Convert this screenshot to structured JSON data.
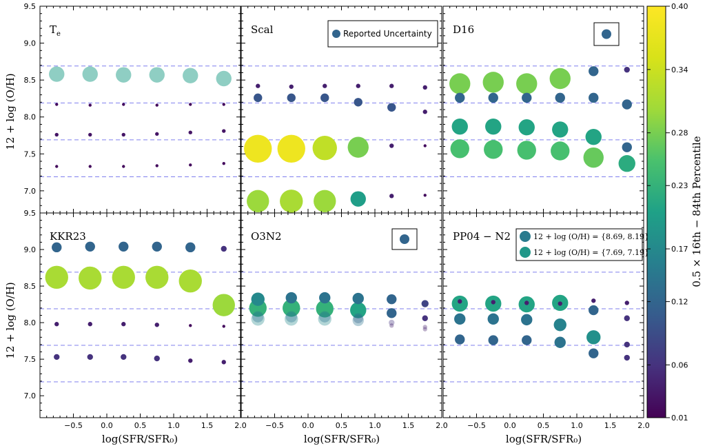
{
  "figure": {
    "ylabel": "12 + log (O/H)",
    "xlabel": "log(SFR/SFR₀)",
    "colorbar": {
      "label": "0.5 × 16th − 84th Percentile",
      "ticks": [
        "0.01",
        "0.06",
        "0.12",
        "0.17",
        "0.23",
        "0.28",
        "0.34",
        "0.40"
      ],
      "min": 0.01,
      "max": 0.4,
      "colormap": "viridis"
    },
    "x_ticks": [
      "−0.5",
      "0.0",
      "0.5",
      "1.0",
      "1.5",
      "2.0"
    ],
    "y_ticks": [
      "7.0",
      "7.5",
      "8.0",
      "8.5",
      "9.0",
      "9.5"
    ],
    "legend_reported": "Reported Uncertainty",
    "legend_bins_high": "12 + log (O/H) = {8.69, 8.19}",
    "legend_bins_low": "12 + log (O/H) = {7.69, 7.19}"
  },
  "chart_data": {
    "type": "scatter",
    "layout": "2x3 grid",
    "xlabel": "log(SFR/SFR₀)",
    "ylabel": "12 + log (O/H)",
    "xlim": [
      -1.0,
      2.0
    ],
    "ylim": [
      6.7,
      9.5
    ],
    "reference_lines": [
      8.69,
      8.19,
      7.69,
      7.19
    ],
    "x": [
      -0.75,
      -0.25,
      0.25,
      0.75,
      1.25,
      1.75
    ],
    "colorbar": {
      "label": "0.5 × 16th − 84th Percentile",
      "min": 0.01,
      "max": 0.4
    },
    "panels": [
      {
        "title": "T_e",
        "series": [
          {
            "y": [
              8.58,
              8.58,
              8.57,
              8.57,
              8.56,
              8.52
            ],
            "sigma": [
              0.2,
              0.2,
              0.2,
              0.2,
              0.2,
              0.2
            ],
            "alpha": 0.5
          },
          {
            "y": [
              8.17,
              8.16,
              8.17,
              8.16,
              8.17,
              8.17
            ],
            "sigma": [
              0.02,
              0.02,
              0.02,
              0.02,
              0.02,
              0.02
            ]
          },
          {
            "y": [
              7.76,
              7.76,
              7.76,
              7.77,
              7.79,
              7.81
            ],
            "sigma": [
              0.03,
              0.03,
              0.03,
              0.03,
              0.03,
              0.03
            ]
          },
          {
            "y": [
              7.33,
              7.33,
              7.33,
              7.34,
              7.35,
              7.37
            ],
            "sigma": [
              0.02,
              0.02,
              0.02,
              0.02,
              0.02,
              0.02
            ]
          }
        ]
      },
      {
        "title": "Scal",
        "legend": "Reported Uncertainty",
        "series": [
          {
            "y": [
              8.42,
              8.41,
              8.42,
              8.42,
              8.42,
              8.4
            ],
            "sigma": [
              0.04,
              0.04,
              0.04,
              0.04,
              0.04,
              0.04
            ]
          },
          {
            "y": [
              8.26,
              8.26,
              8.26,
              8.2,
              8.13,
              8.07
            ],
            "sigma": [
              0.1,
              0.1,
              0.1,
              0.1,
              0.1,
              0.04
            ]
          },
          {
            "y": [
              7.57,
              7.57,
              7.58,
              7.59,
              7.61,
              7.61
            ],
            "sigma": [
              0.38,
              0.38,
              0.33,
              0.28,
              0.04,
              0.02
            ]
          },
          {
            "y": [
              6.86,
              6.86,
              6.86,
              6.89,
              6.93,
              6.94
            ],
            "sigma": [
              0.3,
              0.31,
              0.3,
              0.2,
              0.04,
              0.02
            ]
          }
        ]
      },
      {
        "title": "D16",
        "legend": "reported-uncertainty marker",
        "series": [
          {
            "y": [
              8.45,
              8.47,
              8.45,
              8.52,
              8.62,
              8.64
            ],
            "sigma": [
              0.28,
              0.28,
              0.28,
              0.28,
              0.12,
              0.06
            ]
          },
          {
            "y": [
              8.26,
              8.26,
              8.26,
              8.26,
              8.26,
              8.17
            ],
            "sigma": [
              0.12,
              0.12,
              0.12,
              0.12,
              0.12,
              0.12
            ]
          },
          {
            "y": [
              7.87,
              7.87,
              7.86,
              7.83,
              7.73,
              7.59
            ],
            "sigma": [
              0.21,
              0.21,
              0.21,
              0.21,
              0.21,
              0.12
            ]
          },
          {
            "y": [
              7.57,
              7.56,
              7.55,
              7.54,
              7.45,
              7.37
            ],
            "sigma": [
              0.25,
              0.25,
              0.25,
              0.25,
              0.27,
              0.22
            ]
          }
        ]
      },
      {
        "title": "KKR23",
        "series": [
          {
            "y": [
              9.03,
              9.04,
              9.04,
              9.04,
              9.03,
              9.01
            ],
            "sigma": [
              0.12,
              0.12,
              0.12,
              0.12,
              0.12,
              0.06
            ]
          },
          {
            "y": [
              8.62,
              8.61,
              8.62,
              8.62,
              8.57,
              8.24
            ],
            "sigma": [
              0.31,
              0.31,
              0.31,
              0.31,
              0.31,
              0.3
            ]
          },
          {
            "y": [
              7.98,
              7.98,
              7.98,
              7.97,
              7.96,
              7.95
            ],
            "sigma": [
              0.04,
              0.04,
              0.04,
              0.04,
              0.02,
              0.02
            ]
          },
          {
            "y": [
              7.53,
              7.53,
              7.53,
              7.51,
              7.48,
              7.46
            ],
            "sigma": [
              0.06,
              0.06,
              0.06,
              0.06,
              0.04,
              0.04
            ]
          }
        ]
      },
      {
        "title": "O3N2",
        "legend": "reported-uncertainty marker",
        "series": [
          {
            "y": [
              8.32,
              8.34,
              8.34,
              8.33,
              8.32,
              8.26
            ],
            "sigma": [
              0.17,
              0.14,
              0.14,
              0.14,
              0.12,
              0.08
            ]
          },
          {
            "y": [
              8.2,
              8.2,
              8.19,
              8.17,
              8.13,
              8.06
            ],
            "sigma": [
              0.23,
              0.23,
              0.23,
              0.21,
              0.12,
              0.06
            ]
          },
          {
            "y": [
              8.05,
              8.05,
              8.05,
              8.03,
              8.0,
              7.94
            ],
            "sigma": [
              0.17,
              0.17,
              0.17,
              0.14,
              0.06,
              0.04
            ],
            "alpha": 0.35
          },
          {
            "y": [
              8.08,
              8.08,
              8.08,
              8.06,
              7.96,
              7.91
            ],
            "sigma": [
              0.14,
              0.14,
              0.14,
              0.12,
              0.04,
              0.04
            ],
            "alpha": 0.35
          }
        ]
      },
      {
        "title": "PP04 − N2",
        "legend": [
          "12 + log (O/H) = {8.69, 8.19}",
          "12 + log (O/H) = {7.69, 7.19}"
        ],
        "series": [
          {
            "y": [
              8.29,
              8.28,
              8.27,
              8.26,
              8.3,
              8.27
            ],
            "sigma": [
              0.04,
              0.04,
              0.04,
              0.04,
              0.04,
              0.04
            ]
          },
          {
            "y": [
              8.26,
              8.26,
              8.25,
              8.27,
              8.17,
              8.06
            ],
            "sigma": [
              0.21,
              0.21,
              0.21,
              0.21,
              0.12,
              0.06
            ]
          },
          {
            "y": [
              8.05,
              8.05,
              8.04,
              7.97,
              7.8,
              7.7
            ],
            "sigma": [
              0.14,
              0.14,
              0.14,
              0.16,
              0.18,
              0.06
            ]
          },
          {
            "y": [
              7.77,
              7.76,
              7.76,
              7.73,
              7.58,
              7.52
            ],
            "sigma": [
              0.12,
              0.12,
              0.12,
              0.14,
              0.12,
              0.06
            ]
          }
        ]
      }
    ]
  }
}
